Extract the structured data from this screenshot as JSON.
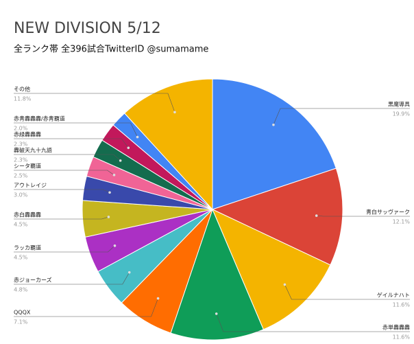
{
  "chart_data": {
    "type": "pie",
    "title": "NEW DIVISION 5/12",
    "subtitle": "全ランク帯 全396試合TwitterID @sumamame",
    "categories": [
      "黒魔導具",
      "青白サッヴァーク",
      "ゲイルナハト",
      "赤単轟轟轟",
      "QQQX",
      "赤ジョーカーズ",
      "ラッカ覇道",
      "赤白轟轟轟",
      "アウトレイジ",
      "シータ覇道",
      "轟破天九十九語",
      "赤緑轟轟轟",
      "赤青轟轟轟/赤青覇道",
      "その他"
    ],
    "values": [
      19.9,
      12.1,
      11.6,
      11.6,
      7.1,
      4.8,
      4.5,
      4.5,
      3.0,
      2.5,
      2.3,
      2.3,
      2.0,
      11.8
    ],
    "value_labels": [
      "19.9%",
      "12.1%",
      "11.6%",
      "11.6%",
      "7.1%",
      "4.8%",
      "4.5%",
      "4.5%",
      "3.0%",
      "2.5%",
      "2.3%",
      "2.3%",
      "2.0%",
      "11.8%"
    ],
    "colors": [
      "#4285f4",
      "#db4437",
      "#f4b400",
      "#0f9d58",
      "#ff6d01",
      "#46bdc6",
      "#ab30c4",
      "#c5b520",
      "#3949ab",
      "#f06496",
      "#146c4e",
      "#c2185b",
      "#4285f4",
      "#f4b400"
    ]
  }
}
